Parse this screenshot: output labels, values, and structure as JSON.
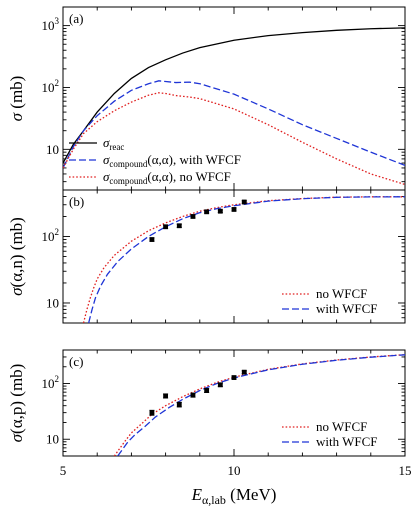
{
  "x_axis": {
    "label_main": "E",
    "label_sub": "α,lab",
    "label_unit": " (MeV)",
    "range": [
      5,
      15
    ],
    "ticks": [
      {
        "v": 5,
        "t": "5"
      },
      {
        "v": 10,
        "t": "10"
      },
      {
        "v": 15,
        "t": "15"
      }
    ]
  },
  "chart_data": [
    {
      "type": "line",
      "panel_tag": "(a)",
      "ylabel_main": "σ",
      "ylabel_unit": " (mb)",
      "yscale": "log",
      "ylim": [
        2.2,
        2000
      ],
      "yticks": [
        {
          "v": 10,
          "b": "10",
          "e": ""
        },
        {
          "v": 100,
          "b": "10",
          "e": "2"
        },
        {
          "v": 1000,
          "b": "10",
          "e": "3"
        }
      ],
      "legend_position": "bottom-left",
      "series": [
        {
          "name": "σ",
          "name_sub": "reac",
          "name_rest": "",
          "color": "#000000",
          "dash": "",
          "x": [
            5.0,
            5.3,
            5.6,
            6.0,
            6.5,
            7.0,
            7.5,
            8.0,
            8.5,
            9.0,
            10.0,
            11.0,
            12.0,
            13.0,
            14.0,
            15.0
          ],
          "y": [
            6,
            12,
            20,
            40,
            80,
            140,
            210,
            280,
            360,
            440,
            580,
            690,
            770,
            840,
            890,
            920
          ]
        },
        {
          "name": "σ",
          "name_sub": "compound",
          "name_rest": "(α,α), with WFCF",
          "color": "#1f35d6",
          "dash": "7,3",
          "x": [
            5.0,
            5.3,
            5.6,
            6.0,
            6.5,
            7.0,
            7.5,
            7.8,
            8.0,
            8.3,
            8.7,
            9.0,
            10.0,
            11.0,
            12.0,
            13.0,
            14.0,
            15.0
          ],
          "y": [
            5,
            11,
            20,
            35,
            60,
            90,
            115,
            128,
            125,
            120,
            122,
            115,
            78,
            45,
            25,
            15,
            9,
            5.5
          ],
          "marker": "none"
        },
        {
          "name": "σ",
          "name_sub": "compound",
          "name_rest": "(α,α), no WFCF",
          "color": "#e02020",
          "dash": "1.6,2",
          "x": [
            5.0,
            5.3,
            5.6,
            6.0,
            6.5,
            7.0,
            7.5,
            7.8,
            8.0,
            8.3,
            8.7,
            9.0,
            10.0,
            11.0,
            12.0,
            13.0,
            14.0,
            15.0
          ],
          "y": [
            5,
            10,
            18,
            28,
            42,
            58,
            75,
            82,
            80,
            74,
            70,
            66,
            45,
            25,
            13,
            7,
            4,
            2.7
          ]
        }
      ]
    },
    {
      "type": "line",
      "panel_tag": "(b)",
      "ylabel_main": "σ",
      "ylabel_unit": "(α,n) (mb)",
      "yscale": "log",
      "ylim": [
        5,
        500
      ],
      "yticks": [
        {
          "v": 10,
          "b": "10",
          "e": ""
        },
        {
          "v": 100,
          "b": "10",
          "e": "2"
        }
      ],
      "legend_position": "bottom-right",
      "series": [
        {
          "name": "no WFCF",
          "color": "#e02020",
          "dash": "1.6,2",
          "x": [
            5.6,
            5.7,
            5.8,
            5.9,
            6.0,
            6.2,
            6.5,
            7.0,
            7.5,
            8.0,
            8.5,
            9.0,
            9.5,
            10.0,
            11.0,
            12.0,
            13.0,
            14.0,
            15.0
          ],
          "y": [
            5,
            8,
            12,
            17,
            23,
            34,
            52,
            85,
            122,
            160,
            200,
            240,
            272,
            300,
            345,
            372,
            390,
            395,
            395
          ]
        },
        {
          "name": "with WFCF",
          "color": "#1f35d6",
          "dash": "7,3",
          "x": [
            5.75,
            5.85,
            5.95,
            6.1,
            6.3,
            6.6,
            7.0,
            7.5,
            8.0,
            8.5,
            9.0,
            9.5,
            10.0,
            11.0,
            12.0,
            13.0,
            14.0,
            15.0
          ],
          "y": [
            5,
            8,
            12,
            18,
            27,
            42,
            65,
            100,
            140,
            185,
            228,
            262,
            290,
            340,
            370,
            388,
            394,
            395
          ]
        }
      ],
      "points": {
        "x": [
          7.6,
          8.0,
          8.4,
          8.8,
          9.2,
          9.6,
          10.0,
          10.3
        ],
        "y": [
          90,
          140,
          145,
          200,
          235,
          240,
          255,
          330
        ],
        "err": [
          5,
          8,
          8,
          10,
          10,
          10,
          12,
          14
        ]
      }
    },
    {
      "type": "line",
      "panel_tag": "(c)",
      "ylabel_main": "σ",
      "ylabel_unit": "(α,p) (mb)",
      "yscale": "log",
      "ylim": [
        5,
        400
      ],
      "yticks": [
        {
          "v": 10,
          "b": "10",
          "e": ""
        },
        {
          "v": 100,
          "b": "10",
          "e": "2"
        }
      ],
      "legend_position": "bottom-right",
      "series": [
        {
          "name": "no WFCF",
          "color": "#e02020",
          "dash": "1.6,2",
          "x": [
            6.5,
            6.8,
            7.0,
            7.3,
            7.6,
            8.0,
            8.5,
            9.0,
            9.5,
            10.0,
            11.0,
            12.0,
            13.0,
            14.0,
            15.0
          ],
          "y": [
            5,
            9,
            13,
            19,
            28,
            40,
            58,
            80,
            105,
            130,
            180,
            225,
            265,
            300,
            330
          ]
        },
        {
          "name": "with WFCF",
          "color": "#1f35d6",
          "dash": "7,3",
          "x": [
            6.6,
            6.9,
            7.1,
            7.4,
            7.7,
            8.1,
            8.5,
            9.0,
            9.5,
            10.0,
            11.0,
            12.0,
            13.0,
            14.0,
            15.0
          ],
          "y": [
            5,
            9,
            12,
            17,
            25,
            37,
            52,
            75,
            100,
            126,
            176,
            222,
            262,
            297,
            328
          ]
        }
      ],
      "points": {
        "x": [
          7.6,
          8.0,
          8.4,
          8.8,
          9.2,
          9.6,
          10.0,
          10.3
        ],
        "y": [
          30,
          60,
          42,
          62,
          75,
          95,
          128,
          160
        ],
        "err": [
          3,
          5,
          4,
          5,
          6,
          7,
          8,
          9
        ]
      }
    }
  ]
}
